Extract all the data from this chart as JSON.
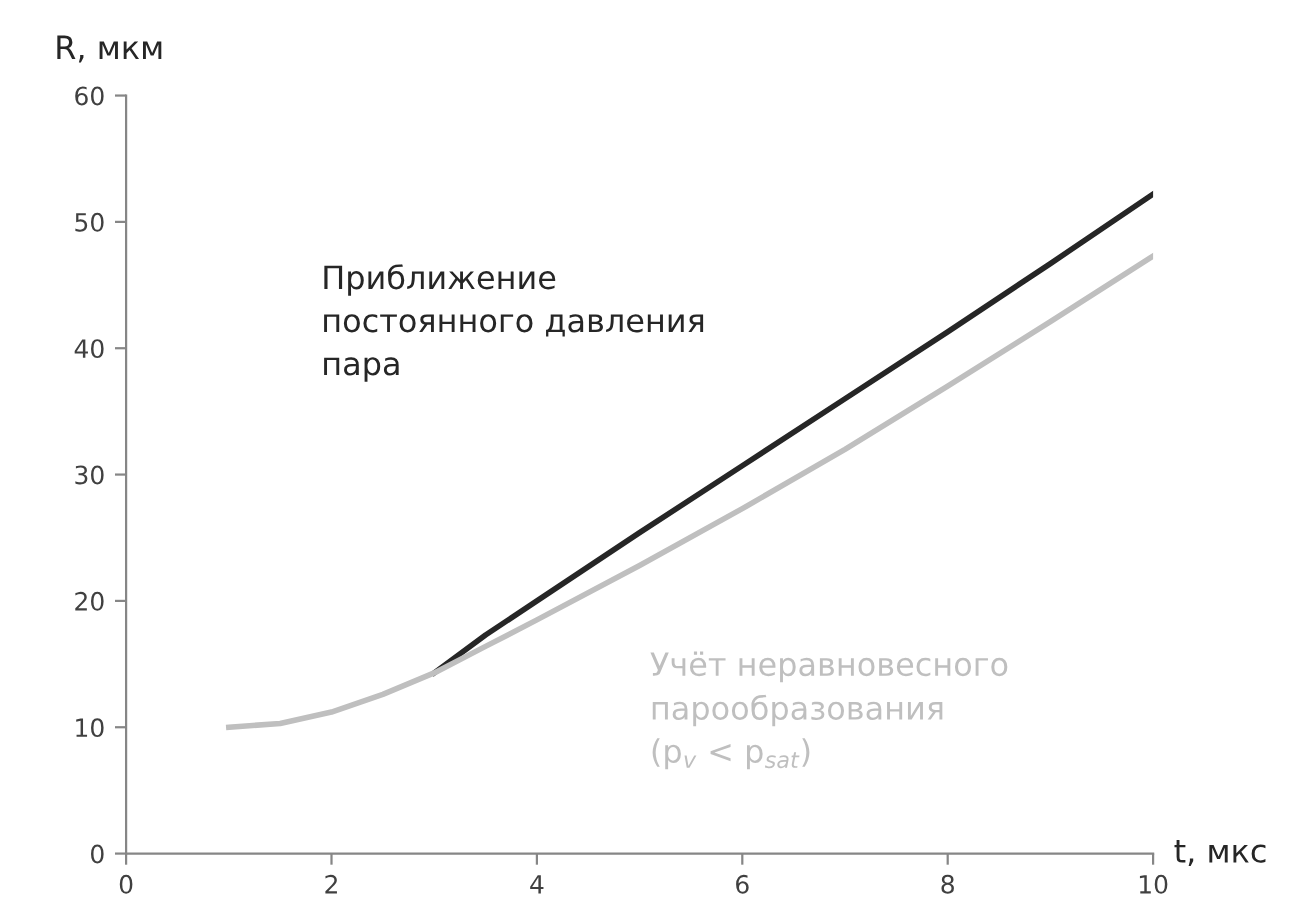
{
  "chart_data": {
    "type": "line",
    "xlabel": "t, мкс",
    "ylabel": "R, мкм",
    "xlim": [
      0,
      10
    ],
    "xticks": [
      0,
      2,
      4,
      6,
      8,
      10
    ],
    "ylim": [
      0,
      60
    ],
    "yticks": [
      0,
      10,
      20,
      30,
      40,
      50,
      60
    ],
    "grid": false,
    "legend": false,
    "marker": "none",
    "line_style": "solid",
    "series": [
      {
        "name": "Приближение\nпостоянного давления\nпара",
        "color": "#262626",
        "x": [
          3,
          3.5,
          4,
          5,
          6,
          7,
          8,
          9,
          10
        ],
        "values": [
          14.3,
          17.3,
          20.0,
          25.4,
          30.7,
          36.0,
          41.3,
          46.7,
          52.2
        ]
      },
      {
        "name": "Учёт неравновесного\nпарообразования\n(p$_{v}$ < p$_{sat}$)",
        "color": "#bfbfbf",
        "x": [
          1,
          1.5,
          2,
          2.5,
          3,
          3.5,
          4,
          5,
          6,
          7,
          8,
          9,
          10
        ],
        "values": [
          10.0,
          10.3,
          11.2,
          12.6,
          14.3,
          16.4,
          18.5,
          22.8,
          27.3,
          32.0,
          37.0,
          42.1,
          47.3
        ]
      }
    ]
  }
}
